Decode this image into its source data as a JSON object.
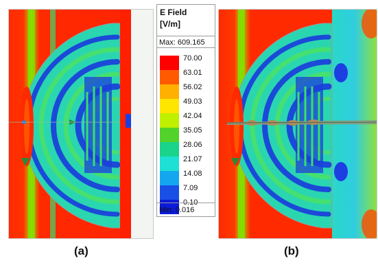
{
  "legend": {
    "title_line1": "E Field",
    "title_line2": "[V/m]",
    "max_label": "Max: 609.165",
    "min_label": "Min:  0.016",
    "ticks": [
      "70.00",
      "63.01",
      "56.02",
      "49.03",
      "42.04",
      "35.05",
      "28.06",
      "21.07",
      "14.08",
      "7.09",
      "0.10"
    ],
    "colors": [
      "#ff0000",
      "#ff5a00",
      "#ffb000",
      "#ffe600",
      "#bff000",
      "#52d22a",
      "#19d48a",
      "#1ee0d4",
      "#14a7f0",
      "#1a4fe6",
      "#0b1ad8"
    ]
  },
  "captions": {
    "a": "(a)",
    "b": "(b)"
  },
  "field_colors": {
    "background_high": "#ff1c00",
    "mid_green": "#33d060",
    "cyan": "#2bd8c8",
    "low_blue": "#1f3fe0",
    "outline": "#9a9a9a"
  }
}
